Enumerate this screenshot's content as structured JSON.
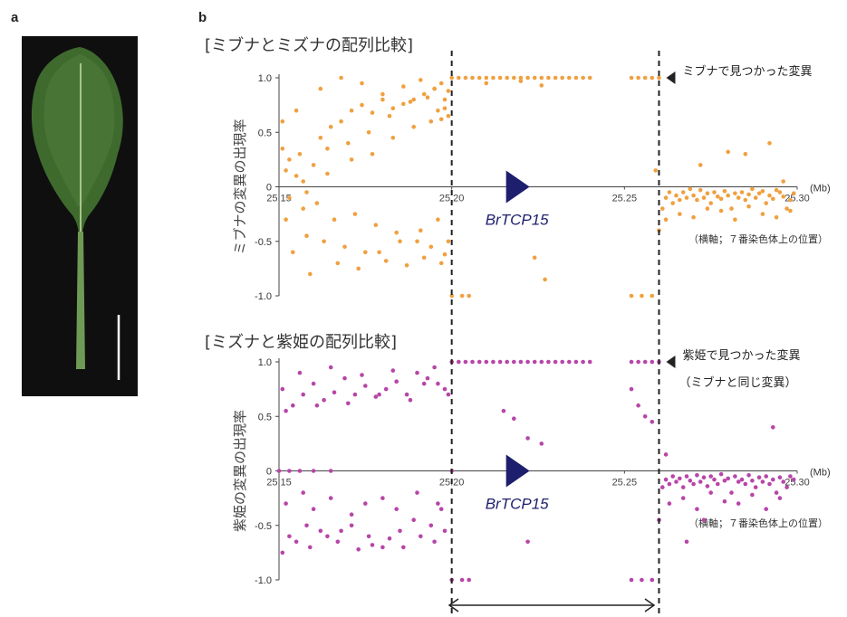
{
  "panel_a": {
    "letter": "a",
    "image": "leaf-photo",
    "background_color": "#0f0f0f",
    "leaf_color": "#3f6a2e",
    "scale_bar_color": "#ffffff"
  },
  "panel_b": {
    "letter": "b",
    "gene_label": "BrTCP15",
    "gene_color": "#1d1f6e",
    "x_unit": "(Mb)",
    "x_note": "（横軸；７番染色体上の位置）"
  },
  "chart_data": [
    {
      "type": "scatter",
      "title": "[ミブナとミズナの配列比較]",
      "ylabel": "ミブナの変異の出現率",
      "xlim": [
        25.15,
        25.3
      ],
      "ylim": [
        -1.0,
        1.0
      ],
      "x_ticks": [
        "25.15",
        "25.20",
        "25.25",
        "25.30"
      ],
      "y_ticks": [
        "1.0",
        "0.5",
        "0",
        "-0.5",
        "-1.0"
      ],
      "color": "#f0a040",
      "annotation": "ミブナで見つかった変異",
      "annotation_line2": "",
      "dashed_lines_x": [
        25.2,
        25.26
      ],
      "series": [
        {
          "x": [
            25.151,
            25.153,
            25.155,
            25.158,
            25.162,
            25.165,
            25.168,
            25.171,
            25.174,
            25.177,
            25.18,
            25.183,
            25.186,
            25.189,
            25.192,
            25.195,
            25.197,
            25.198,
            25.199,
            25.152,
            25.156,
            25.16,
            25.164,
            25.17,
            25.176,
            25.182,
            25.188,
            25.193,
            25.196,
            25.199,
            25.153,
            25.157,
            25.161,
            25.166,
            25.172,
            25.178,
            25.184,
            25.19,
            25.194,
            25.198,
            25.152,
            25.158,
            25.163,
            25.169,
            25.175,
            25.181,
            25.187,
            25.192,
            25.197,
            25.154,
            25.159,
            25.167,
            25.173,
            25.179,
            25.185,
            25.191,
            25.196,
            25.199,
            25.151,
            25.155,
            25.162,
            25.168,
            25.174,
            25.18,
            25.186,
            25.191,
            25.195,
            25.198,
            25.157,
            25.164,
            25.171,
            25.177,
            25.183,
            25.189,
            25.194,
            25.197
          ],
          "y": [
            0.35,
            0.25,
            0.1,
            -0.05,
            0.45,
            0.55,
            0.6,
            0.7,
            0.75,
            0.68,
            0.8,
            0.72,
            0.76,
            0.8,
            0.85,
            0.9,
            0.95,
            0.72,
            0.65,
            0.15,
            0.3,
            0.2,
            0.35,
            0.4,
            0.5,
            0.65,
            0.78,
            0.82,
            0.7,
            0.88,
            -0.1,
            -0.2,
            -0.15,
            -0.3,
            -0.25,
            -0.35,
            -0.42,
            -0.5,
            -0.55,
            -0.62,
            -0.3,
            -0.45,
            -0.5,
            -0.55,
            -0.6,
            -0.68,
            -0.72,
            -0.65,
            -0.7,
            -0.6,
            -0.8,
            -0.7,
            -0.75,
            -0.6,
            -0.5,
            -0.4,
            -0.3,
            -0.5,
            0.6,
            0.7,
            0.9,
            1.0,
            0.95,
            0.85,
            0.92,
            0.98,
            0.9,
            0.8,
            0.05,
            0.12,
            0.25,
            0.3,
            0.45,
            0.55,
            0.6,
            0.62
          ]
        },
        {
          "x": [
            25.2,
            25.202,
            25.204,
            25.206,
            25.208,
            25.21,
            25.212,
            25.214,
            25.216,
            25.218,
            25.22,
            25.222,
            25.224,
            25.226,
            25.228,
            25.23,
            25.232,
            25.234,
            25.236,
            25.238,
            25.24,
            25.252,
            25.254,
            25.256,
            25.258,
            25.26,
            25.21,
            25.22,
            25.226,
            25.2,
            25.203,
            25.205,
            25.252,
            25.255,
            25.258,
            25.224,
            25.227
          ],
          "y": [
            1.0,
            1.0,
            1.0,
            1.0,
            1.0,
            1.0,
            1.0,
            1.0,
            1.0,
            1.0,
            1.0,
            1.0,
            1.0,
            1.0,
            1.0,
            1.0,
            1.0,
            1.0,
            1.0,
            1.0,
            1.0,
            1.0,
            1.0,
            1.0,
            1.0,
            1.0,
            0.95,
            0.97,
            0.93,
            -1.0,
            -1.0,
            -1.0,
            -1.0,
            -1.0,
            -1.0,
            -0.65,
            -0.85
          ]
        },
        {
          "x": [
            25.26,
            25.261,
            25.262,
            25.263,
            25.264,
            25.265,
            25.266,
            25.267,
            25.268,
            25.269,
            25.27,
            25.271,
            25.272,
            25.273,
            25.274,
            25.275,
            25.276,
            25.277,
            25.278,
            25.279,
            25.28,
            25.281,
            25.282,
            25.283,
            25.284,
            25.285,
            25.286,
            25.287,
            25.288,
            25.289,
            25.29,
            25.291,
            25.292,
            25.293,
            25.294,
            25.295,
            25.296,
            25.297,
            25.298,
            25.299,
            25.262,
            25.266,
            25.27,
            25.274,
            25.278,
            25.282,
            25.286,
            25.29,
            25.294,
            25.298,
            25.259,
            25.272,
            25.28,
            25.285,
            25.292,
            25.296
          ],
          "y": [
            -0.4,
            -0.2,
            -0.1,
            -0.05,
            -0.15,
            -0.08,
            -0.12,
            -0.05,
            -0.1,
            -0.02,
            -0.08,
            -0.12,
            -0.03,
            -0.1,
            -0.06,
            -0.15,
            -0.05,
            -0.09,
            -0.11,
            -0.04,
            -0.08,
            -0.2,
            -0.06,
            -0.1,
            -0.05,
            -0.12,
            -0.07,
            -0.02,
            -0.1,
            -0.06,
            -0.04,
            -0.15,
            -0.08,
            -0.11,
            -0.03,
            -0.05,
            -0.09,
            -0.2,
            -0.12,
            -0.06,
            -0.3,
            -0.25,
            -0.28,
            -0.2,
            -0.22,
            -0.3,
            -0.18,
            -0.25,
            -0.28,
            -0.22,
            0.15,
            0.2,
            0.32,
            0.3,
            0.4,
            0.05
          ]
        }
      ]
    },
    {
      "type": "scatter",
      "title": "[ミズナと紫姫の配列比較]",
      "ylabel": "紫姫の変異の出現率",
      "xlim": [
        25.15,
        25.3
      ],
      "ylim": [
        -1.0,
        1.0
      ],
      "x_ticks": [
        "25.15",
        "25.20",
        "25.25",
        "25.30"
      ],
      "y_ticks": [
        "1.0",
        "0.5",
        "0",
        "-0.5",
        "-1.0"
      ],
      "color": "#b845a8",
      "annotation": "紫姫で見つかった変異",
      "annotation_line2": "（ミブナと同じ変異）",
      "dashed_lines_x": [
        25.2,
        25.26
      ],
      "series": [
        {
          "x": [
            25.151,
            25.154,
            25.157,
            25.16,
            25.163,
            25.166,
            25.169,
            25.172,
            25.175,
            25.178,
            25.181,
            25.184,
            25.187,
            25.19,
            25.193,
            25.196,
            25.198,
            25.152,
            25.156,
            25.161,
            25.165,
            25.17,
            25.174,
            25.179,
            25.183,
            25.188,
            25.192,
            25.195,
            25.199,
            25.153,
            25.158,
            25.162,
            25.167,
            25.171,
            25.176,
            25.18,
            25.185,
            25.189,
            25.194,
            25.197,
            25.151,
            25.155,
            25.159,
            25.164,
            25.168,
            25.173,
            25.177,
            25.182,
            25.186,
            25.191,
            25.195,
            25.198,
            25.152,
            25.157,
            25.16,
            25.165,
            25.171,
            25.175,
            25.18,
            25.184,
            25.19,
            25.196,
            25.15,
            25.153,
            25.156,
            25.16,
            25.165,
            25.2
          ],
          "y": [
            0.75,
            0.6,
            0.7,
            0.8,
            0.65,
            0.72,
            0.85,
            0.7,
            0.78,
            0.68,
            0.75,
            0.82,
            0.7,
            0.9,
            0.85,
            0.8,
            0.75,
            0.55,
            0.9,
            0.6,
            0.95,
            0.62,
            0.88,
            0.7,
            0.92,
            0.65,
            0.8,
            0.95,
            0.7,
            -0.6,
            -0.5,
            -0.55,
            -0.65,
            -0.5,
            -0.6,
            -0.7,
            -0.55,
            -0.45,
            -0.5,
            -0.35,
            -0.75,
            -0.65,
            -0.7,
            -0.6,
            -0.55,
            -0.72,
            -0.68,
            -0.62,
            -0.7,
            -0.6,
            -0.65,
            -0.55,
            -0.3,
            -0.2,
            -0.35,
            -0.25,
            -0.4,
            -0.3,
            -0.25,
            -0.35,
            -0.2,
            -0.3,
            0.0,
            0.0,
            0.0,
            0.0,
            0.0,
            0.0
          ]
        },
        {
          "x": [
            25.2,
            25.202,
            25.204,
            25.206,
            25.208,
            25.21,
            25.212,
            25.214,
            25.216,
            25.218,
            25.22,
            25.222,
            25.224,
            25.226,
            25.228,
            25.23,
            25.232,
            25.234,
            25.236,
            25.238,
            25.24,
            25.252,
            25.254,
            25.256,
            25.258,
            25.26,
            25.215,
            25.218,
            25.222,
            25.226,
            25.252,
            25.254,
            25.256,
            25.258,
            25.2,
            25.203,
            25.205,
            25.252,
            25.255,
            25.258,
            25.222
          ],
          "y": [
            1.0,
            1.0,
            1.0,
            1.0,
            1.0,
            1.0,
            1.0,
            1.0,
            1.0,
            1.0,
            1.0,
            1.0,
            1.0,
            1.0,
            1.0,
            1.0,
            1.0,
            1.0,
            1.0,
            1.0,
            1.0,
            1.0,
            1.0,
            1.0,
            1.0,
            1.0,
            0.55,
            0.48,
            0.3,
            0.25,
            0.75,
            0.6,
            0.5,
            0.45,
            -1.0,
            -1.0,
            -1.0,
            -1.0,
            -1.0,
            -1.0,
            -0.65
          ]
        },
        {
          "x": [
            25.26,
            25.261,
            25.262,
            25.263,
            25.264,
            25.265,
            25.266,
            25.267,
            25.268,
            25.269,
            25.27,
            25.271,
            25.272,
            25.273,
            25.274,
            25.275,
            25.276,
            25.277,
            25.278,
            25.279,
            25.28,
            25.281,
            25.282,
            25.283,
            25.284,
            25.285,
            25.286,
            25.287,
            25.288,
            25.289,
            25.29,
            25.291,
            25.292,
            25.293,
            25.294,
            25.295,
            25.296,
            25.297,
            25.298,
            25.299,
            25.263,
            25.267,
            25.271,
            25.275,
            25.279,
            25.283,
            25.287,
            25.291,
            25.295,
            25.262,
            25.268,
            25.273,
            25.293
          ],
          "y": [
            -0.45,
            -0.15,
            -0.08,
            -0.12,
            -0.05,
            -0.1,
            -0.07,
            -0.15,
            -0.05,
            -0.09,
            -0.12,
            -0.04,
            -0.1,
            -0.06,
            -0.14,
            -0.05,
            -0.08,
            -0.12,
            -0.03,
            -0.09,
            -0.07,
            -0.2,
            -0.05,
            -0.1,
            -0.08,
            -0.12,
            -0.04,
            -0.09,
            -0.15,
            -0.06,
            -0.1,
            -0.05,
            -0.12,
            -0.08,
            -0.2,
            -0.06,
            -0.1,
            -0.15,
            -0.05,
            -0.08,
            -0.3,
            -0.25,
            -0.35,
            -0.2,
            -0.28,
            -0.3,
            -0.22,
            -0.35,
            -0.25,
            0.15,
            -0.65,
            -0.45,
            0.4
          ]
        }
      ]
    }
  ]
}
